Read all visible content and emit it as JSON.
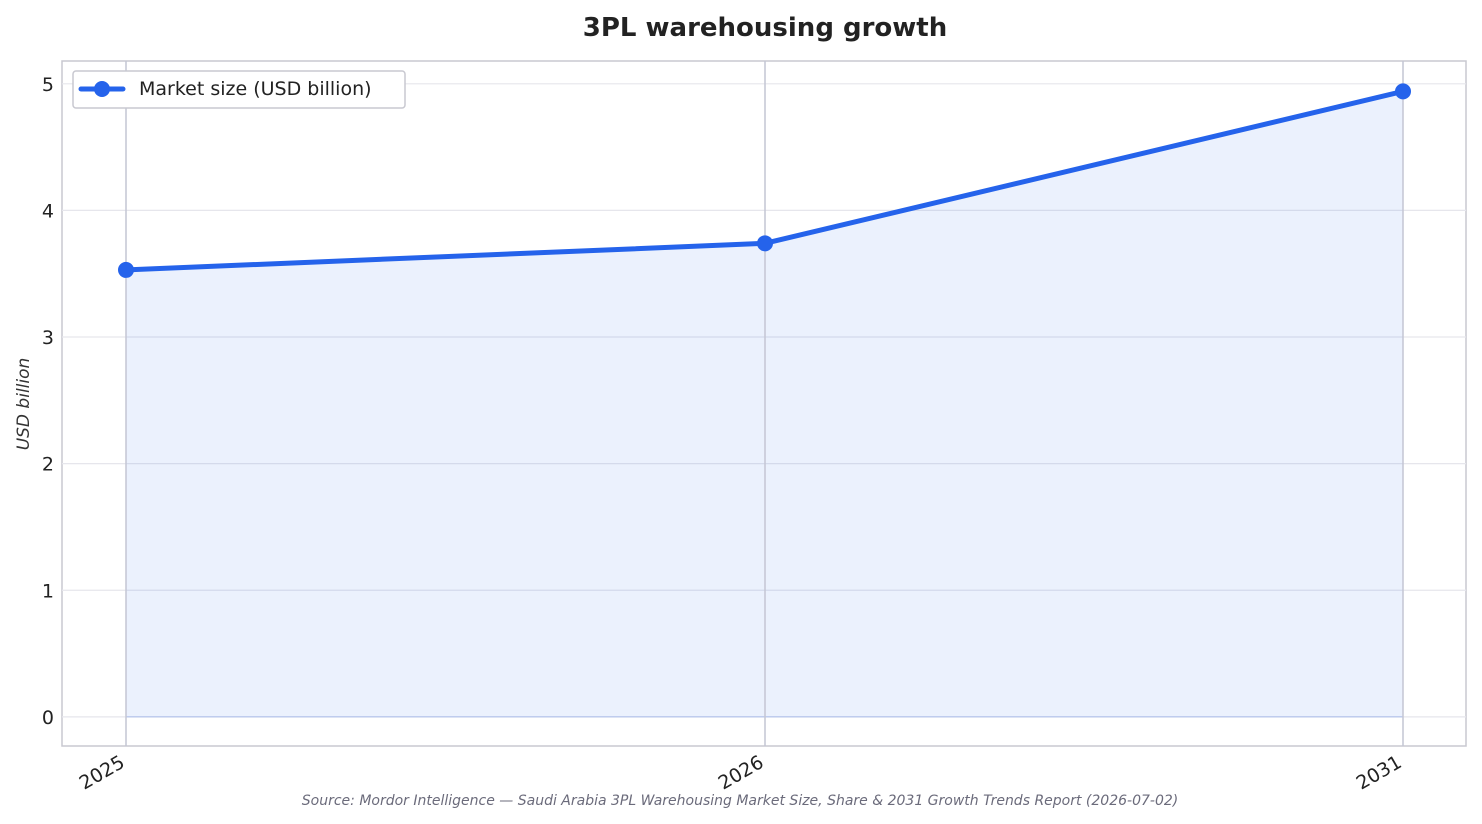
{
  "chart_data": {
    "type": "line",
    "title": "3PL warehousing growth",
    "xlabel": "",
    "ylabel": "USD billion",
    "categories": [
      "2025",
      "2026",
      "2031"
    ],
    "series": [
      {
        "name": "Market size (USD billion)",
        "values": [
          3.53,
          3.74,
          4.94
        ],
        "color": "#2563eb",
        "fill": "area"
      }
    ],
    "ylim": [
      -0.23,
      5.18
    ],
    "yticks": [
      0,
      1,
      2,
      3,
      4,
      5
    ],
    "grid": true,
    "legend": "top-left",
    "source": "Source: Mordor Intelligence — Saudi Arabia 3PL Warehousing Market Size, Share & 2031 Growth Trends Report (2026-07-02)"
  }
}
